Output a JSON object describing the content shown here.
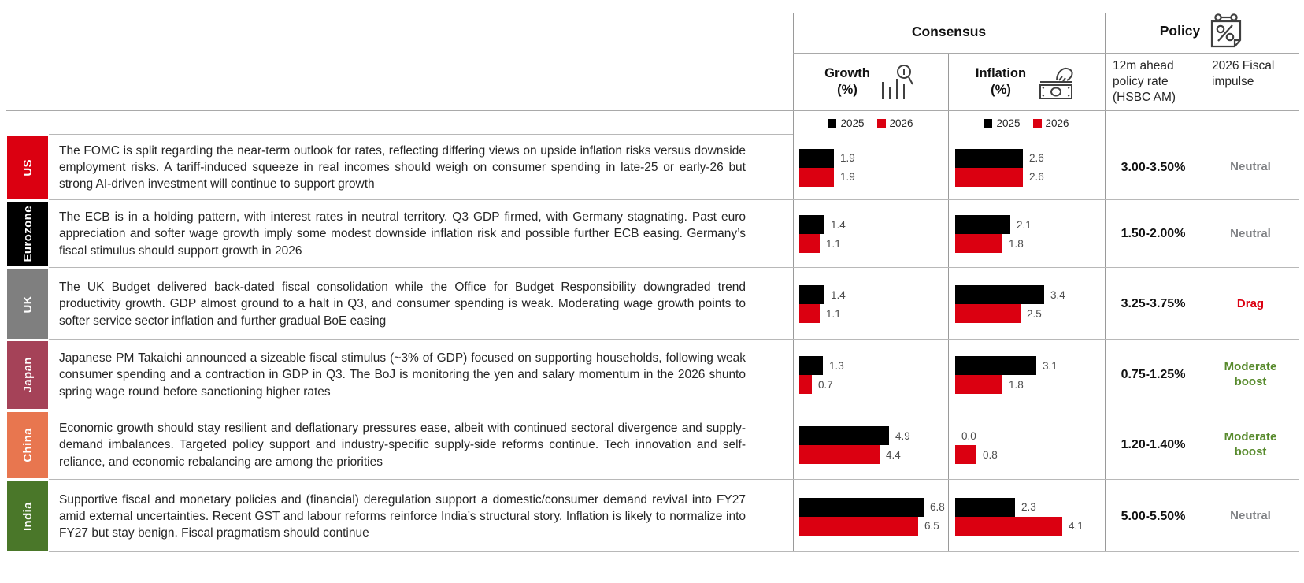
{
  "header": {
    "consensus": "Consensus",
    "policy": "Policy",
    "growth_title": "Growth",
    "growth_unit": "(%)",
    "inflation_title": "Inflation",
    "inflation_unit": "(%)",
    "policy_rate_header": "12m ahead policy rate (HSBC AM)",
    "fiscal_header": "2026 Fiscal impulse"
  },
  "legend": {
    "y2025": "2025",
    "y2026": "2026",
    "color_2025": "#000000",
    "color_2026": "#DB0011"
  },
  "colors": {
    "neutral_gray": "#808285",
    "drag_red": "#DB0011",
    "boost_green": "#578A2C"
  },
  "rows": [
    {
      "region": "US",
      "region_color": "#DB0011",
      "commentary": "The FOMC is split regarding the near-term outlook for rates, reflecting differing views on upside inflation risks versus downside employment risks. A tariff-induced squeeze in real incomes should weigh on consumer spending in late-25 or early-26 but strong AI-driven investment will continue to support growth",
      "growth_2025": "1.9",
      "growth_2026": "1.9",
      "inflation_2025": "2.6",
      "inflation_2026": "2.6",
      "policy_rate": "3.00-3.50%",
      "fiscal_impulse": "Neutral",
      "fiscal_color": "#808285"
    },
    {
      "region": "Eurozone",
      "region_color": "#000000",
      "commentary": "The ECB is in a holding pattern, with interest rates in neutral territory. Q3 GDP firmed, with Germany stagnating. Past euro appreciation and softer wage growth imply some modest downside inflation risk and possible further ECB easing. Germany’s fiscal stimulus should support growth in 2026",
      "growth_2025": "1.4",
      "growth_2026": "1.1",
      "inflation_2025": "2.1",
      "inflation_2026": "1.8",
      "policy_rate": "1.50-2.00%",
      "fiscal_impulse": "Neutral",
      "fiscal_color": "#808285"
    },
    {
      "region": "UK",
      "region_color": "#7F7F7F",
      "commentary": "The UK Budget delivered back-dated fiscal consolidation while the Office for Budget Responsibility downgraded trend productivity growth. GDP almost ground to a halt in Q3, and consumer spending is weak. Moderating wage growth points to softer service sector inflation and further gradual BoE easing",
      "growth_2025": "1.4",
      "growth_2026": "1.1",
      "inflation_2025": "3.4",
      "inflation_2026": "2.5",
      "policy_rate": "3.25-3.75%",
      "fiscal_impulse": "Drag",
      "fiscal_color": "#DB0011"
    },
    {
      "region": "Japan",
      "region_color": "#A54258",
      "commentary": "Japanese PM Takaichi announced a sizeable fiscal stimulus (~3% of GDP) focused on supporting households, following weak consumer spending and a contraction in GDP in Q3. The BoJ is monitoring the yen and salary momentum in the 2026 shunto spring wage round before sanctioning higher rates",
      "growth_2025": "1.3",
      "growth_2026": "0.7",
      "inflation_2025": "3.1",
      "inflation_2026": "1.8",
      "policy_rate": "0.75-1.25%",
      "fiscal_impulse": "Moderate boost",
      "fiscal_color": "#578A2C"
    },
    {
      "region": "China",
      "region_color": "#E8764F",
      "commentary": "Economic growth should stay resilient and deflationary pressures ease, albeit with continued sectoral divergence and supply-demand imbalances. Targeted policy support and industry-specific supply-side reforms continue. Tech innovation and self-reliance, and economic rebalancing are among the priorities",
      "growth_2025": "4.9",
      "growth_2026": "4.4",
      "inflation_2025": "0.0",
      "inflation_2026": "0.8",
      "policy_rate": "1.20-1.40%",
      "fiscal_impulse": "Moderate boost",
      "fiscal_color": "#578A2C"
    },
    {
      "region": "India",
      "region_color": "#4A7729",
      "commentary": "Supportive fiscal and monetary policies and (financial) deregulation support a domestic/consumer demand revival into FY27 amid external uncertainties. Recent GST and labour reforms reinforce India’s structural story. Inflation is likely to normalize into FY27 but stay benign. Fiscal pragmatism should continue",
      "growth_2025": "6.8",
      "growth_2026": "6.5",
      "inflation_2025": "2.3",
      "inflation_2026": "4.1",
      "policy_rate": "5.00-5.50%",
      "fiscal_impulse": "Neutral",
      "fiscal_color": "#808285"
    }
  ],
  "chart_data": [
    {
      "type": "bar",
      "title": "Consensus Growth (%)",
      "orientation": "horizontal",
      "categories": [
        "US",
        "Eurozone",
        "UK",
        "Japan",
        "China",
        "India"
      ],
      "series": [
        {
          "name": "2025",
          "color": "#000000",
          "values": [
            1.9,
            1.4,
            1.4,
            1.3,
            4.9,
            6.8
          ]
        },
        {
          "name": "2026",
          "color": "#DB0011",
          "values": [
            1.9,
            1.1,
            1.1,
            0.7,
            4.4,
            6.5
          ]
        }
      ],
      "xlim": [
        0,
        6.8
      ],
      "grid": false,
      "legend_position": "top"
    },
    {
      "type": "bar",
      "title": "Consensus Inflation (%)",
      "orientation": "horizontal",
      "categories": [
        "US",
        "Eurozone",
        "UK",
        "Japan",
        "China",
        "India"
      ],
      "series": [
        {
          "name": "2025",
          "color": "#000000",
          "values": [
            2.6,
            2.1,
            3.4,
            3.1,
            0.0,
            2.3
          ]
        },
        {
          "name": "2026",
          "color": "#DB0011",
          "values": [
            2.6,
            1.8,
            2.5,
            1.8,
            0.8,
            4.1
          ]
        }
      ],
      "xlim": [
        0,
        4.1
      ],
      "grid": false,
      "legend_position": "top"
    },
    {
      "type": "table",
      "title": "Policy",
      "categories": [
        "US",
        "Eurozone",
        "UK",
        "Japan",
        "China",
        "India"
      ],
      "series": [
        {
          "name": "12m ahead policy rate (HSBC AM)",
          "values": [
            "3.00-3.50%",
            "1.50-2.00%",
            "3.25-3.75%",
            "0.75-1.25%",
            "1.20-1.40%",
            "5.00-5.50%"
          ]
        },
        {
          "name": "2026 Fiscal impulse",
          "values": [
            "Neutral",
            "Neutral",
            "Drag",
            "Moderate boost",
            "Moderate boost",
            "Neutral"
          ]
        }
      ]
    }
  ]
}
